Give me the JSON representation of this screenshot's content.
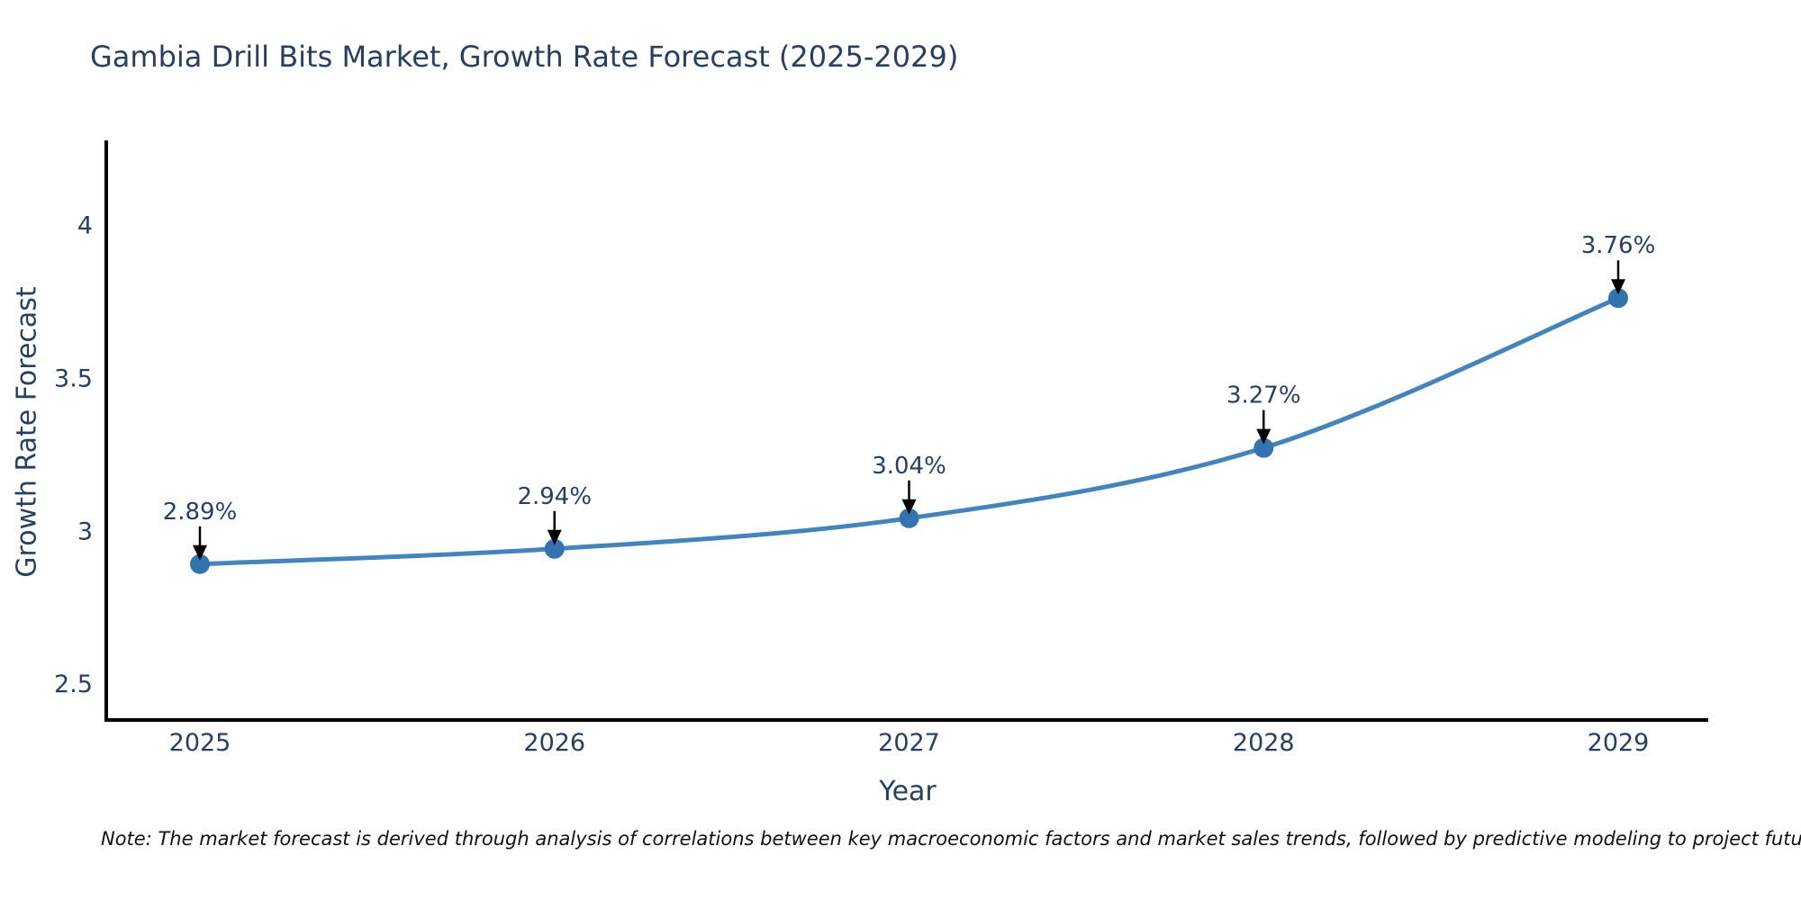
{
  "title": "Gambia Drill Bits Market, Growth Rate Forecast (2025-2029)",
  "note": "Note: The market forecast is derived through analysis of correlations between key macroeconomic factors and market sales trends, followed by predictive modeling to project future sales",
  "chart_data": {
    "type": "line",
    "title": "Gambia Drill Bits Market, Growth Rate Forecast (2025-2029)",
    "x": [
      "2025",
      "2026",
      "2027",
      "2028",
      "2029"
    ],
    "values": [
      2.89,
      2.94,
      3.04,
      3.27,
      3.76
    ],
    "point_labels": [
      "2.89%",
      "2.94%",
      "3.04%",
      "3.27%",
      "3.76%"
    ],
    "xlabel": "Year",
    "ylabel": "Growth Rate Forecast",
    "yticks": [
      2.5,
      3,
      3.5,
      4
    ],
    "ytick_labels": [
      "2.5",
      "3",
      "3.5",
      "4"
    ],
    "ylim": [
      2.38,
      4.27
    ],
    "grid": false,
    "legend_position": "none",
    "colors": {
      "line": "#4484bb",
      "marker": "#3474ae",
      "axis": "#000000",
      "tick_text": "#2a3f5f",
      "annotation_text": "#2a3f5f",
      "annotation_arrow": "#000000",
      "note_text": "#111111",
      "background": "#ffffff"
    }
  }
}
